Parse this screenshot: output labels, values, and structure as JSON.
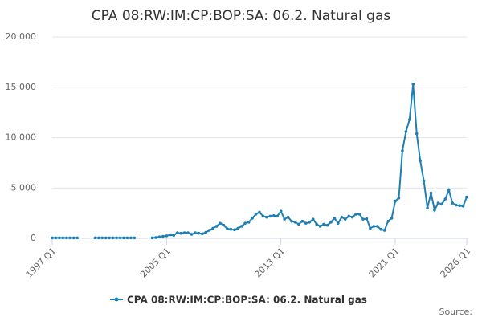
{
  "chart_data": {
    "type": "line",
    "title": "CPA 08:RW:IM:CP:BOP:SA: 06.2. Natural gas",
    "source": "Source:",
    "categories": [
      "1997 Q1",
      null,
      null,
      null,
      null,
      null,
      null,
      null,
      null,
      null,
      null,
      null,
      null,
      null,
      null,
      null,
      null,
      null,
      null,
      null,
      null,
      null,
      null,
      null,
      null,
      null,
      null,
      null,
      null,
      null,
      null,
      null,
      "2005 Q1",
      null,
      null,
      null,
      null,
      null,
      null,
      null,
      null,
      null,
      null,
      null,
      null,
      null,
      null,
      null,
      null,
      null,
      null,
      null,
      null,
      null,
      null,
      null,
      null,
      null,
      null,
      null,
      null,
      null,
      null,
      null,
      "2013 Q1",
      null,
      null,
      null,
      null,
      null,
      null,
      null,
      null,
      null,
      null,
      null,
      null,
      null,
      null,
      null,
      null,
      null,
      null,
      null,
      null,
      null,
      null,
      null,
      null,
      null,
      null,
      null,
      null,
      null,
      null,
      null,
      "2021 Q1",
      null,
      null,
      null,
      null,
      null,
      null,
      null,
      null,
      null,
      null,
      null,
      null,
      null,
      null,
      null,
      null,
      null,
      null,
      null,
      "2026 Q1"
    ],
    "series": [
      {
        "name": "CPA 08:RW:IM:CP:BOP:SA: 06.2. Natural gas",
        "color": "#1f7fb4",
        "values": [
          50,
          50,
          50,
          50,
          50,
          50,
          50,
          50,
          null,
          null,
          null,
          null,
          50,
          50,
          50,
          50,
          50,
          50,
          50,
          50,
          50,
          50,
          50,
          50,
          null,
          null,
          null,
          null,
          50,
          80,
          150,
          200,
          250,
          350,
          300,
          550,
          500,
          550,
          550,
          400,
          550,
          500,
          450,
          600,
          800,
          1000,
          1200,
          1500,
          1300,
          950,
          900,
          850,
          1000,
          1200,
          1500,
          1600,
          2000,
          2400,
          2600,
          2200,
          2100,
          2200,
          2250,
          2200,
          2700,
          1900,
          2100,
          1700,
          1600,
          1400,
          1700,
          1500,
          1600,
          1900,
          1400,
          1200,
          1400,
          1300,
          1600,
          2000,
          1500,
          2100,
          1900,
          2200,
          2100,
          2400,
          2400,
          1900,
          1950,
          1000,
          1200,
          1200,
          900,
          800,
          1700,
          2000,
          3700,
          4000,
          8700,
          10600,
          11800,
          15300,
          10400,
          7700,
          5700,
          3000,
          4500,
          2800,
          3500,
          3400,
          3900,
          4800,
          3500,
          3300,
          3250,
          3200,
          4100
        ]
      }
    ],
    "ylim": [
      0,
      20000
    ],
    "yticks": [
      0,
      {
        "value": 5000,
        "label": "5 000"
      },
      {
        "value": 10000,
        "label": "10 000"
      },
      {
        "value": 15000,
        "label": "15 000"
      },
      {
        "value": 20000,
        "label": "20 000"
      }
    ],
    "grid": true
  }
}
